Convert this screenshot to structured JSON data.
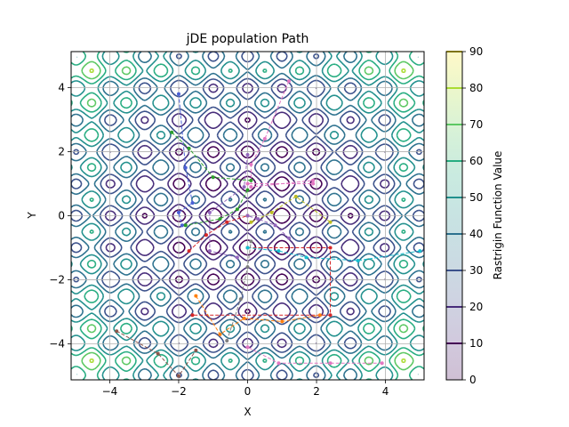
{
  "chart_data": {
    "type": "contour",
    "title": "jDE population Path",
    "xlabel": "X",
    "ylabel": "Y",
    "xlim": [
      -5.12,
      5.12
    ],
    "ylim": [
      -5.12,
      5.12
    ],
    "xticks": [
      -4,
      -2,
      0,
      2,
      4
    ],
    "yticks": [
      -4,
      -2,
      0,
      2,
      4
    ],
    "grid": true,
    "function": "rastrigin",
    "contour_levels": [
      10,
      20,
      30,
      40,
      50,
      60,
      70,
      80,
      90
    ],
    "colorbar": {
      "label": "Rastrigin Function Value",
      "ticks": [
        0,
        10,
        20,
        30,
        40,
        50,
        60,
        70,
        80,
        90
      ],
      "colors": [
        "#440154",
        "#472c7a",
        "#3b518b",
        "#2c718e",
        "#21908d",
        "#27ad81",
        "#5cc863",
        "#aadc32",
        "#fde725"
      ]
    },
    "paths": [
      {
        "color": "#d62728",
        "points": [
          [
            0,
            -1
          ],
          [
            2.4,
            -1
          ],
          [
            2.4,
            -3.1
          ],
          [
            -1.6,
            -3.1
          ]
        ]
      },
      {
        "color": "#4b5fd6",
        "points": [
          [
            -2,
            3.8
          ],
          [
            -1.8,
            1.5
          ],
          [
            -1.6,
            0.4
          ],
          [
            -2,
            0.1
          ],
          [
            -1.9,
            -0.3
          ]
        ]
      },
      {
        "color": "#e377c2",
        "points": [
          [
            1.2,
            4.2
          ],
          [
            0.5,
            2.4
          ],
          [
            0.1,
            1.6
          ],
          [
            0.1,
            0.9
          ],
          [
            1.9,
            1.1
          ],
          [
            1.9,
            1
          ],
          [
            0,
            1
          ]
        ]
      },
      {
        "color": "#9467bd",
        "points": [
          [
            0,
            1.9
          ],
          [
            -0.1,
            0.9
          ],
          [
            -1.1,
            0.1
          ],
          [
            -1.1,
            -1.1
          ],
          [
            -0.3,
            -1.3
          ]
        ]
      },
      {
        "color": "#2ca02c",
        "points": [
          [
            0,
            0.8
          ],
          [
            -0.3,
            0.2
          ],
          [
            -0.8,
            -0.1
          ],
          [
            -1.8,
            -0.3
          ]
        ]
      },
      {
        "color": "#bcbd22",
        "points": [
          [
            2.4,
            -0.2
          ],
          [
            1.4,
            0.6
          ],
          [
            0.7,
            0.1
          ],
          [
            0.1,
            -0.2
          ]
        ]
      },
      {
        "color": "#17becf",
        "points": [
          [
            5,
            -1.1
          ],
          [
            3.2,
            -1.4
          ],
          [
            1.7,
            -1.3
          ],
          [
            0.9,
            -1.1
          ],
          [
            0,
            -1
          ]
        ]
      },
      {
        "color": "#ff7f0e",
        "points": [
          [
            -1.5,
            -2.5
          ],
          [
            -0.8,
            -3.7
          ],
          [
            -0.1,
            -3.2
          ],
          [
            1,
            -3.3
          ],
          [
            2.1,
            -3.1
          ]
        ]
      },
      {
        "color": "#8c564b",
        "points": [
          [
            -3.8,
            -3.6
          ],
          [
            -2.6,
            -4.3
          ],
          [
            -2,
            -5
          ],
          [
            -1.5,
            -4.2
          ]
        ]
      },
      {
        "color": "#e377c2",
        "points": [
          [
            3.9,
            -4.6
          ],
          [
            2.4,
            -4.6
          ],
          [
            0.9,
            -4.6
          ],
          [
            0,
            -4.1
          ]
        ]
      },
      {
        "color": "#2ca02c",
        "points": [
          [
            -2.2,
            2.6
          ],
          [
            -1.7,
            2.1
          ],
          [
            -1,
            1.2
          ],
          [
            0.1,
            1.1
          ]
        ]
      },
      {
        "color": "#d62728",
        "points": [
          [
            -1.7,
            -1.1
          ],
          [
            -1.2,
            -0.6
          ],
          [
            -0.6,
            -0.2
          ],
          [
            0,
            0
          ]
        ]
      },
      {
        "color": "#9467bd",
        "points": [
          [
            1.2,
            -0.7
          ],
          [
            0.8,
            -0.3
          ],
          [
            0.3,
            -0.1
          ],
          [
            0,
            0
          ]
        ]
      },
      {
        "color": "#7f7f7f",
        "points": [
          [
            -0.6,
            -3.9
          ],
          [
            -0.2,
            -2.6
          ],
          [
            0,
            -1.6
          ],
          [
            0.1,
            -0.8
          ]
        ]
      }
    ]
  }
}
